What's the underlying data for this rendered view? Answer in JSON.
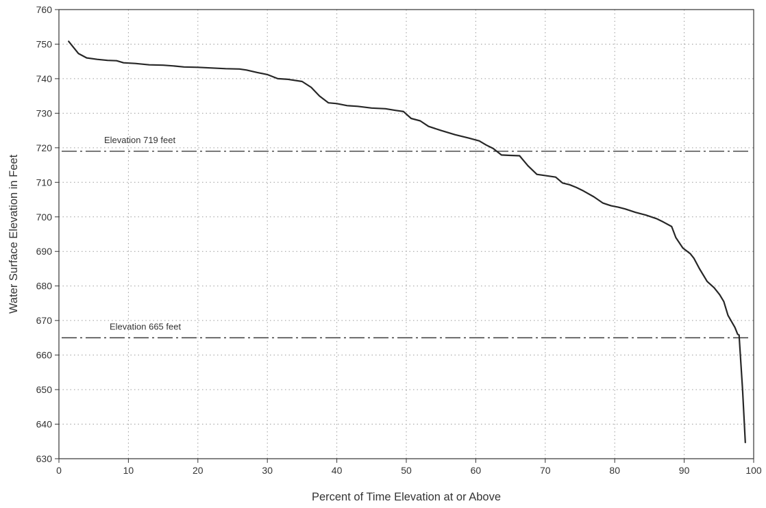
{
  "chart_data": {
    "type": "line",
    "title": "",
    "xlabel": "Percent of Time Elevation at or Above",
    "ylabel": "Water Surface Elevation in Feet",
    "xlim": [
      0,
      100
    ],
    "ylim": [
      630,
      760
    ],
    "x_ticks": [
      "0",
      "10",
      "20",
      "30",
      "40",
      "50",
      "60",
      "70",
      "80",
      "90",
      "100"
    ],
    "y_ticks": [
      "630",
      "640",
      "650",
      "660",
      "670",
      "680",
      "690",
      "700",
      "710",
      "720",
      "730",
      "740",
      "750",
      "760"
    ],
    "grid": true,
    "reference_lines": [
      {
        "label": "Elevation 719 feet",
        "y": 719
      },
      {
        "label": "Elevation 665 feet",
        "y": 665
      }
    ],
    "series": [
      {
        "x": [
          1.4,
          2.8,
          4.0,
          5.5,
          7.0,
          8.3,
          9.3,
          11.0,
          13.0,
          15.0,
          16.5,
          18.0,
          20.0,
          22.0,
          24.0,
          26.0,
          27.0,
          28.5,
          30.0,
          31.5,
          33.0,
          35.0,
          36.3,
          37.5,
          38.8,
          40.0,
          41.5,
          43.0,
          45.0,
          47.0,
          48.5,
          49.6,
          50.7,
          52.0,
          53.2,
          55.0,
          57.0,
          59.0,
          60.5,
          61.5,
          62.5,
          63.7,
          64.7,
          66.3,
          67.5,
          68.8,
          70.5,
          71.5,
          72.5,
          73.5,
          74.5,
          75.5,
          77.0,
          78.3,
          79.5,
          80.5,
          81.5,
          83.0,
          84.5,
          86.0,
          87.0,
          88.2,
          88.8,
          89.8,
          90.9,
          91.4,
          92.2,
          93.3,
          94.3,
          95.1,
          95.7,
          96.3,
          97.3,
          97.7,
          97.9,
          98.4,
          98.8
        ],
        "y": [
          750.8,
          747.3,
          746.0,
          745.6,
          745.3,
          745.2,
          744.6,
          744.4,
          744.0,
          743.9,
          743.7,
          743.4,
          743.3,
          743.1,
          742.9,
          742.8,
          742.5,
          741.8,
          741.2,
          740.0,
          739.8,
          739.2,
          737.5,
          735.0,
          733.0,
          732.8,
          732.2,
          732.0,
          731.5,
          731.3,
          730.8,
          730.5,
          728.5,
          727.8,
          726.2,
          725.0,
          723.8,
          722.8,
          722.0,
          720.8,
          719.8,
          717.9,
          717.8,
          717.7,
          714.8,
          712.3,
          711.8,
          711.5,
          709.8,
          709.3,
          708.5,
          707.5,
          705.8,
          704.0,
          703.2,
          702.8,
          702.3,
          701.3,
          700.5,
          699.5,
          698.5,
          697.2,
          694.0,
          691.0,
          689.3,
          688.0,
          685.0,
          681.3,
          679.5,
          677.5,
          675.5,
          671.5,
          668.0,
          666.0,
          665.8,
          650.0,
          634.7
        ]
      }
    ]
  }
}
